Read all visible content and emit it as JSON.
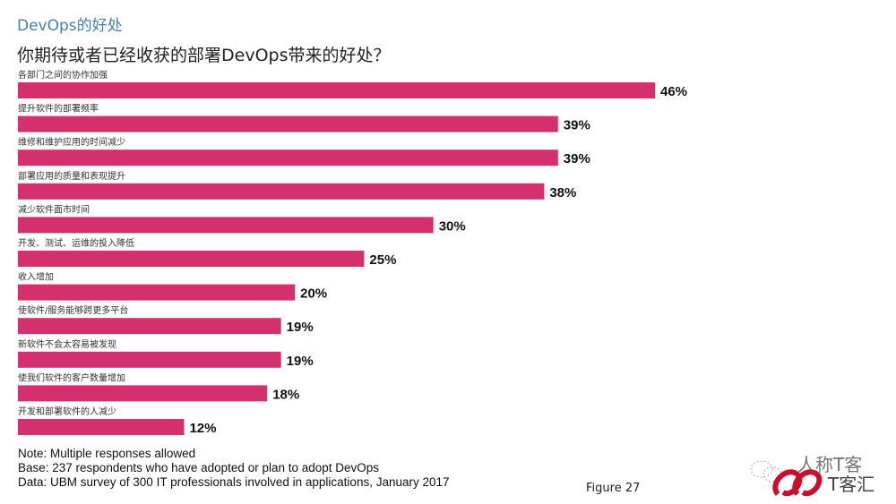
{
  "header": {
    "subtitle": "DevOps的好处",
    "title": "你期待或者已经收获的部署DevOps带来的好处？"
  },
  "chart_data": {
    "type": "bar",
    "orientation": "horizontal",
    "title": "你期待或者已经收获的部署DevOps带来的好处？",
    "xlabel": "",
    "ylabel": "",
    "unit": "%",
    "xlim": [
      0,
      46
    ],
    "grid": false,
    "bar_color": "#d4306e",
    "categories": [
      "各部门之间的协作加强",
      "提升软件的部署频率",
      "维修和维护应用的时间减少",
      "部署应用的质量和表现提升",
      "减少软件面市时间",
      "开发、测试、运维的投入降低",
      "收入增加",
      "使软件/服务能够跨更多平台",
      "新软件不会太容易被发现",
      "使我们软件的客户数量增加",
      "开发和部署软件的人减少"
    ],
    "values": [
      46,
      39,
      39,
      38,
      30,
      25,
      20,
      19,
      19,
      18,
      12
    ],
    "value_labels": [
      "46%",
      "39%",
      "39%",
      "38%",
      "30%",
      "25%",
      "20%",
      "19%",
      "19%",
      "18%",
      "12%"
    ]
  },
  "footer": {
    "notes": [
      "Note: Multiple responses allowed",
      "Base: 237 respondents who have adopted or plan to adopt DevOps",
      "Data: UBM survey of 300 IT professionals involved in applications, January 2017"
    ],
    "figure": "Figure 27",
    "watermark_text": "人称T客 T客汇",
    "watermark_icon": "wechat-logo"
  }
}
